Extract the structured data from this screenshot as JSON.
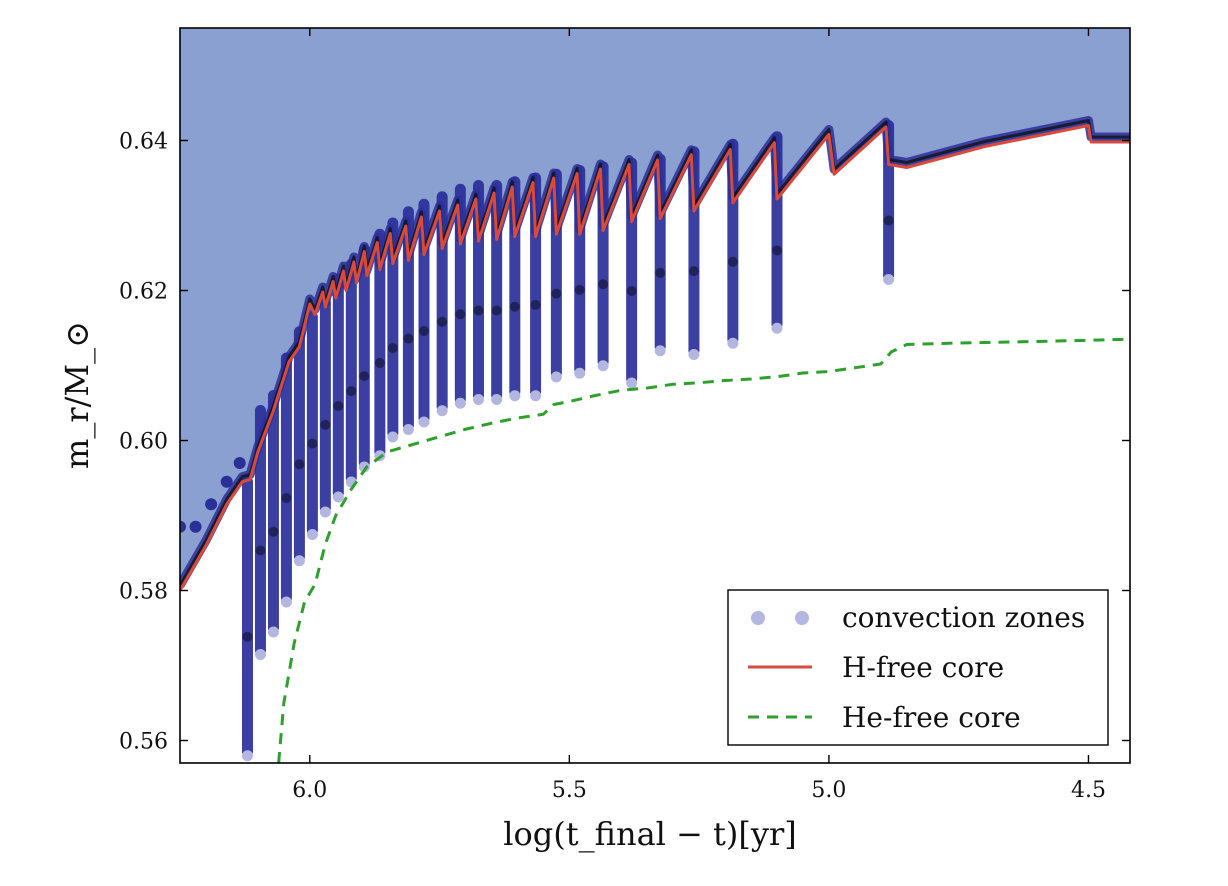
{
  "chart_data": {
    "type": "scatter",
    "xlabel": "log(t_final − t)[yr]",
    "ylabel": "m_r/M_⊙",
    "x_reversed": true,
    "xlim": [
      6.25,
      4.42
    ],
    "ylim": [
      0.557,
      0.655
    ],
    "x_ticks": [
      6.0,
      5.5,
      5.0,
      4.5
    ],
    "x_tick_labels": [
      "6.0",
      "5.5",
      "5.0",
      "4.5"
    ],
    "y_ticks": [
      0.56,
      0.58,
      0.6,
      0.62,
      0.64
    ],
    "y_tick_labels": [
      "0.56",
      "0.58",
      "0.60",
      "0.62",
      "0.64"
    ],
    "envelope_color": "#8aa0d0",
    "legend": {
      "placement": "bottom-right",
      "entries": [
        {
          "label": "convection zones",
          "marker": "dots",
          "color": "#b4b6e2"
        },
        {
          "label": "H-free core",
          "marker": "solid-line",
          "color": "#d94a3a"
        },
        {
          "label": "He-free core",
          "marker": "dashed-line",
          "color": "#2ea02e"
        }
      ]
    },
    "series": [
      {
        "name": "H-free core",
        "color": "#d94a3a",
        "style": "solid",
        "x": [
          6.25,
          6.2,
          6.16,
          6.13,
          6.115,
          6.1,
          6.07,
          6.04,
          6.02,
          6.0,
          5.99,
          5.975,
          5.97,
          5.955,
          5.95,
          5.935,
          5.93,
          5.915,
          5.91,
          5.895,
          5.89,
          5.87,
          5.865,
          5.845,
          5.84,
          5.815,
          5.81,
          5.785,
          5.78,
          5.75,
          5.745,
          5.715,
          5.71,
          5.68,
          5.675,
          5.645,
          5.64,
          5.61,
          5.605,
          5.57,
          5.565,
          5.53,
          5.525,
          5.485,
          5.48,
          5.44,
          5.435,
          5.385,
          5.38,
          5.33,
          5.325,
          5.265,
          5.26,
          5.19,
          5.185,
          5.105,
          5.1,
          5.0,
          4.99,
          4.89,
          4.885,
          4.85,
          4.7,
          4.5,
          4.495,
          4.48,
          4.42
        ],
        "y": [
          0.58,
          0.586,
          0.5915,
          0.5945,
          0.5948,
          0.5985,
          0.604,
          0.6105,
          0.6125,
          0.6182,
          0.6168,
          0.6198,
          0.6178,
          0.6212,
          0.619,
          0.6226,
          0.62,
          0.6238,
          0.621,
          0.6252,
          0.622,
          0.6264,
          0.6228,
          0.6276,
          0.6236,
          0.6286,
          0.624,
          0.6298,
          0.6248,
          0.6306,
          0.6256,
          0.6314,
          0.6262,
          0.6322,
          0.6266,
          0.633,
          0.6268,
          0.6338,
          0.6272,
          0.6344,
          0.6272,
          0.635,
          0.6275,
          0.6356,
          0.6275,
          0.6362,
          0.628,
          0.6368,
          0.6292,
          0.6374,
          0.6296,
          0.6381,
          0.6306,
          0.6388,
          0.6317,
          0.6397,
          0.6322,
          0.6408,
          0.6355,
          0.6418,
          0.6368,
          0.6364,
          0.6392,
          0.642,
          0.6398,
          0.6398,
          0.6398
        ]
      },
      {
        "name": "He-free core",
        "color": "#2ea02e",
        "style": "dashed",
        "x": [
          6.06,
          6.05,
          6.03,
          6.01,
          5.99,
          5.97,
          5.95,
          5.92,
          5.89,
          5.85,
          5.8,
          5.75,
          5.7,
          5.65,
          5.6,
          5.55,
          5.53,
          5.5,
          5.45,
          5.4,
          5.35,
          5.3,
          5.25,
          5.2,
          5.15,
          5.1,
          5.05,
          5.0,
          4.95,
          4.9,
          4.88,
          4.85,
          4.75,
          4.6,
          4.42
        ],
        "y": [
          0.557,
          0.565,
          0.573,
          0.5785,
          0.5808,
          0.5862,
          0.59,
          0.5935,
          0.5965,
          0.5985,
          0.5995,
          0.6005,
          0.6015,
          0.6023,
          0.603,
          0.6035,
          0.6048,
          0.6052,
          0.606,
          0.6067,
          0.607,
          0.6075,
          0.6077,
          0.608,
          0.6082,
          0.6085,
          0.609,
          0.6092,
          0.6097,
          0.6102,
          0.6118,
          0.6128,
          0.613,
          0.6132,
          0.6135
        ]
      },
      {
        "name": "convection zones",
        "color": "#2a2f9a",
        "style": "dots",
        "columns": [
          {
            "x": 6.12,
            "y_low": 0.5585,
            "y_high": 0.5945
          },
          {
            "x": 6.095,
            "y_low": 0.572,
            "y_high": 0.604
          },
          {
            "x": 6.07,
            "y_low": 0.575,
            "y_high": 0.606
          },
          {
            "x": 6.045,
            "y_low": 0.579,
            "y_high": 0.611
          },
          {
            "x": 6.02,
            "y_low": 0.5845,
            "y_high": 0.6145
          },
          {
            "x": 5.995,
            "y_low": 0.588,
            "y_high": 0.6165
          },
          {
            "x": 5.97,
            "y_low": 0.591,
            "y_high": 0.6185
          },
          {
            "x": 5.945,
            "y_low": 0.593,
            "y_high": 0.6215
          },
          {
            "x": 5.92,
            "y_low": 0.595,
            "y_high": 0.6235
          },
          {
            "x": 5.895,
            "y_low": 0.597,
            "y_high": 0.6255
          },
          {
            "x": 5.865,
            "y_low": 0.5985,
            "y_high": 0.6275
          },
          {
            "x": 5.84,
            "y_low": 0.601,
            "y_high": 0.629
          },
          {
            "x": 5.81,
            "y_low": 0.602,
            "y_high": 0.6305
          },
          {
            "x": 5.78,
            "y_low": 0.603,
            "y_high": 0.6315
          },
          {
            "x": 5.745,
            "y_low": 0.6045,
            "y_high": 0.6325
          },
          {
            "x": 5.71,
            "y_low": 0.6055,
            "y_high": 0.6335
          },
          {
            "x": 5.675,
            "y_low": 0.606,
            "y_high": 0.634
          },
          {
            "x": 5.64,
            "y_low": 0.606,
            "y_high": 0.634
          },
          {
            "x": 5.605,
            "y_low": 0.6065,
            "y_high": 0.6345
          },
          {
            "x": 5.565,
            "y_low": 0.6065,
            "y_high": 0.635
          },
          {
            "x": 5.525,
            "y_low": 0.609,
            "y_high": 0.6355
          },
          {
            "x": 5.48,
            "y_low": 0.6095,
            "y_high": 0.636
          },
          {
            "x": 5.435,
            "y_low": 0.6105,
            "y_high": 0.6365
          },
          {
            "x": 5.38,
            "y_low": 0.6082,
            "y_high": 0.637
          },
          {
            "x": 5.325,
            "y_low": 0.6125,
            "y_high": 0.6375
          },
          {
            "x": 5.26,
            "y_low": 0.612,
            "y_high": 0.6385
          },
          {
            "x": 5.185,
            "y_low": 0.6135,
            "y_high": 0.6395
          },
          {
            "x": 5.1,
            "y_low": 0.6155,
            "y_high": 0.6405
          },
          {
            "x": 4.885,
            "y_low": 0.622,
            "y_high": 0.642
          }
        ]
      }
    ]
  }
}
